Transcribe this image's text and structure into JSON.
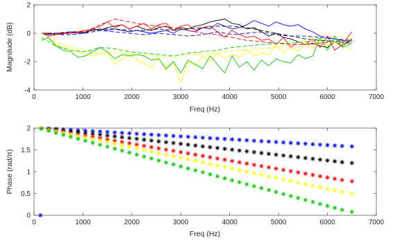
{
  "chart_data": [
    {
      "type": "line",
      "xlabel": "Freq (Hz)",
      "ylabel": "Magnitude (dB)",
      "xlim": [
        0,
        7000
      ],
      "ylim": [
        -4,
        2
      ],
      "xticks": [
        0,
        1000,
        2000,
        3000,
        4000,
        5000,
        6000,
        7000
      ],
      "xtick_labels": [
        "0",
        "1000",
        "2000",
        "3000",
        "4000",
        "5000",
        "6000",
        "7000"
      ],
      "yticks": [
        -4,
        -2,
        0,
        2
      ],
      "ytick_labels": [
        "-4",
        "-2",
        "0",
        "2"
      ],
      "grid": false,
      "series": [
        {
          "color": "#0000ff",
          "style": "solid",
          "x": [
            150,
            300,
            450,
            600,
            750,
            900,
            1050,
            1200,
            1350,
            1500,
            1650,
            1800,
            1950,
            2100,
            2250,
            2400,
            2550,
            2700,
            2850,
            3000,
            3150,
            3300,
            3450,
            3600,
            3750,
            3900,
            4050,
            4200,
            4350,
            4500,
            4650,
            4800,
            4950,
            5100,
            5250,
            5400,
            5550,
            5700,
            5850,
            6000,
            6150,
            6300,
            6500
          ],
          "y": [
            0,
            -0.1,
            0,
            0,
            0.1,
            0,
            0.1,
            0.2,
            0.3,
            0.2,
            0.3,
            0.2,
            0.1,
            0.2,
            0.1,
            0,
            0.1,
            0.2,
            0,
            0.3,
            0.2,
            0.1,
            0.4,
            0.3,
            0.7,
            0.5,
            0.3,
            0.4,
            0.6,
            0.9,
            0.7,
            0.5,
            0.8,
            0.6,
            0.5,
            0.6,
            0.3,
            0.1,
            -0.2,
            -0.3,
            -0.4,
            -0.5,
            -0.6
          ]
        },
        {
          "color": "#0000ff",
          "style": "dashed",
          "x": [
            150,
            450,
            750,
            1050,
            1350,
            1650,
            1950,
            2250,
            2550,
            2850,
            3150,
            3450,
            3750,
            4050,
            4350,
            4650,
            4950,
            5250,
            5550,
            5850,
            6150,
            6500
          ],
          "y": [
            0,
            -0.1,
            -0.1,
            0,
            0.2,
            0.1,
            0,
            -0.1,
            0,
            -0.1,
            -0.2,
            -0.1,
            0.1,
            -0.1,
            0,
            0.1,
            -0.1,
            -0.2,
            -0.2,
            -0.3,
            -0.4,
            -0.5
          ]
        },
        {
          "color": "#000000",
          "style": "solid",
          "x": [
            150,
            300,
            450,
            600,
            750,
            900,
            1050,
            1200,
            1350,
            1500,
            1650,
            1800,
            1950,
            2100,
            2250,
            2400,
            2550,
            2700,
            2850,
            3000,
            3150,
            3300,
            3450,
            3600,
            3750,
            3900,
            4050,
            4200,
            4350,
            4500,
            4650,
            4800,
            4950,
            5100,
            5250,
            5400,
            5550,
            5700,
            5850,
            6000,
            6150,
            6300,
            6500
          ],
          "y": [
            0,
            0,
            -0.1,
            0,
            0,
            0.1,
            0,
            0.3,
            0.2,
            0.4,
            0.5,
            0.6,
            0.3,
            0.5,
            0.3,
            0.2,
            0.4,
            0.5,
            0.2,
            0.4,
            0.3,
            0.5,
            0.6,
            0.8,
            0.9,
            1.0,
            0.7,
            0.6,
            0.3,
            0.4,
            0.1,
            -0.2,
            0,
            -0.3,
            -0.4,
            -0.6,
            -0.8,
            -0.7,
            -0.9,
            -1.0,
            -0.6,
            -0.9,
            -0.4
          ]
        },
        {
          "color": "#000000",
          "style": "dashed",
          "x": [
            150,
            450,
            750,
            1050,
            1350,
            1650,
            1950,
            2250,
            2550,
            2850,
            3150,
            3450,
            3750,
            4050,
            4350,
            4650,
            4950,
            5250,
            5550,
            5850,
            6150,
            6500
          ],
          "y": [
            0,
            0,
            0.1,
            0.1,
            0.3,
            0.3,
            0.2,
            0.2,
            0.3,
            0.2,
            0.3,
            0.4,
            0.5,
            0.5,
            0.4,
            0.2,
            0,
            -0.2,
            -0.4,
            -0.5,
            -0.6,
            -0.7
          ]
        },
        {
          "color": "#ff0000",
          "style": "solid",
          "x": [
            150,
            300,
            450,
            600,
            750,
            900,
            1050,
            1200,
            1350,
            1500,
            1650,
            1800,
            1950,
            2100,
            2250,
            2400,
            2550,
            2700,
            2850,
            3000,
            3150,
            3300,
            3450,
            3600,
            3750,
            3900,
            4050,
            4200,
            4350,
            4500,
            4650,
            4800,
            4950,
            5100,
            5250,
            5400,
            5550,
            5700,
            5850,
            6000,
            6150,
            6300,
            6500
          ],
          "y": [
            0,
            -0.2,
            -0.1,
            0,
            0,
            0.1,
            0.2,
            0.3,
            0.5,
            0.8,
            0.4,
            0.6,
            0.3,
            0.5,
            0.7,
            0.3,
            0.6,
            0.7,
            0.2,
            0.5,
            0.6,
            0.2,
            0.4,
            0.5,
            0.1,
            -0.3,
            0.2,
            -0.1,
            -0.3,
            -0.2,
            -0.5,
            -0.4,
            -0.8,
            -0.3,
            -1.0,
            -0.6,
            -0.8,
            -0.4,
            -1.0,
            -0.2,
            -1.2,
            -0.8,
            0.1
          ]
        },
        {
          "color": "#ff0000",
          "style": "dashed",
          "x": [
            150,
            450,
            750,
            1050,
            1350,
            1650,
            1950,
            2250,
            2550,
            2850,
            3150,
            3450,
            3750,
            4050,
            4350,
            4650,
            4950,
            5250,
            5550,
            5850,
            6150,
            6500
          ],
          "y": [
            0,
            -0.1,
            0,
            0.1,
            0.6,
            1.0,
            0.8,
            0.6,
            0.5,
            0.4,
            0.2,
            0,
            -0.1,
            -0.3,
            -0.5,
            -0.6,
            -0.7,
            -0.8,
            -0.8,
            -0.7,
            -0.6,
            -0.5
          ]
        },
        {
          "color": "#ffff00",
          "style": "solid",
          "x": [
            150,
            300,
            450,
            600,
            750,
            900,
            1050,
            1200,
            1350,
            1500,
            1650,
            1800,
            1950,
            2100,
            2250,
            2400,
            2550,
            2700,
            2850,
            3000,
            3150,
            3300,
            3450,
            3600,
            3750,
            3900,
            4050,
            4200,
            4350,
            4500,
            4650,
            4800,
            4950,
            5100,
            5250,
            5400,
            5550,
            5700,
            5850,
            6000,
            6150,
            6300,
            6500
          ],
          "y": [
            0,
            -0.3,
            -0.8,
            -1.0,
            -1.2,
            -1.3,
            -1.5,
            -1.6,
            -1.4,
            -1.3,
            -2.2,
            -1.8,
            -1.5,
            -1.9,
            -2.1,
            -2.4,
            -1.7,
            -2.6,
            -2.0,
            -3.5,
            -2.0,
            -2.3,
            -1.6,
            -2.0,
            -1.4,
            -1.8,
            -1.5,
            -1.7,
            -1.2,
            -1.6,
            -1.4,
            -1.5,
            -0.8,
            -1.4,
            -1.0,
            -1.3,
            -0.7,
            -1.1,
            -0.5,
            -0.9,
            -0.6,
            -0.8,
            -1.2
          ]
        },
        {
          "color": "#ffff00",
          "style": "dashed",
          "x": [
            150,
            450,
            750,
            1050,
            1350,
            1650,
            1950,
            2250,
            2550,
            2850,
            3150,
            3450,
            3750,
            4050,
            4350,
            4650,
            4950,
            5250,
            5550,
            5850,
            6150,
            6500
          ],
          "y": [
            0,
            -0.6,
            -1.0,
            -1.2,
            -1.5,
            -1.3,
            -1.5,
            -1.5,
            -1.6,
            -1.7,
            -1.5,
            -1.5,
            -1.4,
            -1.2,
            -1.2,
            -1.1,
            -1.0,
            -0.8,
            -0.6,
            -0.3,
            -0.2,
            -0.5
          ]
        },
        {
          "color": "#00cc00",
          "style": "solid",
          "x": [
            150,
            300,
            450,
            600,
            750,
            900,
            1050,
            1200,
            1350,
            1500,
            1650,
            1800,
            1950,
            2100,
            2250,
            2400,
            2550,
            2700,
            2850,
            3000,
            3150,
            3300,
            3450,
            3600,
            3750,
            3900,
            4050,
            4200,
            4350,
            4500,
            4650,
            4800,
            4950,
            5100,
            5250,
            5400,
            5550,
            5700,
            5850,
            6000,
            6150,
            6300,
            6500
          ],
          "y": [
            -0.5,
            -0.3,
            -0.9,
            -1.2,
            -1.3,
            -1.7,
            -1.6,
            -1.3,
            -1.0,
            -1.3,
            -1.8,
            -1.5,
            -1.6,
            -1.5,
            -1.6,
            -1.9,
            -1.8,
            -2.5,
            -2.0,
            -2.8,
            -1.9,
            -2.2,
            -2.5,
            -1.6,
            -2.2,
            -2.8,
            -1.6,
            -2.4,
            -2.0,
            -2.6,
            -1.9,
            -2.3,
            -1.8,
            -2.0,
            -2.1,
            -1.5,
            -1.8,
            -1.6,
            -0.3,
            -1.2,
            -0.2,
            -1.0,
            -0.7
          ]
        },
        {
          "color": "#00cc00",
          "style": "dashed",
          "x": [
            150,
            450,
            750,
            1050,
            1350,
            1650,
            1950,
            2250,
            2550,
            2850,
            3150,
            3450,
            3750,
            4050,
            4350,
            4650,
            4950,
            5250,
            5550,
            5850,
            6150,
            6500
          ],
          "y": [
            -0.3,
            -0.9,
            -1.2,
            -1.3,
            -1.0,
            -1.1,
            -1.3,
            -1.4,
            -1.5,
            -1.6,
            -1.4,
            -1.3,
            -1.2,
            -1.0,
            -0.9,
            -0.8,
            -0.7,
            -0.7,
            -0.6,
            -0.5,
            -0.5,
            -0.6
          ]
        }
      ]
    },
    {
      "type": "scatter",
      "marker": "*",
      "xlabel": "Freq (Hz)",
      "ylabel": "Phase (rad/π)",
      "xlim": [
        0,
        7000
      ],
      "ylim": [
        0,
        2
      ],
      "xticks": [
        0,
        1000,
        2000,
        3000,
        4000,
        5000,
        6000,
        7000
      ],
      "xtick_labels": [
        "0",
        "1000",
        "2000",
        "3000",
        "4000",
        "5000",
        "6000",
        "7000"
      ],
      "yticks": [
        0,
        0.5,
        1,
        1.5,
        2
      ],
      "ytick_labels": [
        "0",
        "0.5",
        "1",
        "1.5",
        "2"
      ],
      "grid": false,
      "x": [
        150,
        300,
        450,
        600,
        750,
        900,
        1050,
        1200,
        1350,
        1500,
        1650,
        1800,
        1950,
        2100,
        2250,
        2400,
        2550,
        2700,
        2850,
        3000,
        3150,
        3300,
        3450,
        3600,
        3750,
        3900,
        4050,
        4200,
        4350,
        4500,
        4650,
        4800,
        4950,
        5100,
        5250,
        5400,
        5550,
        5700,
        5850,
        6000,
        6150,
        6300,
        6500
      ],
      "series": [
        {
          "color": "#0000ff",
          "params": {
            "start": 2.0,
            "end": 1.58
          },
          "extra_points": [
            [
              130,
              0.0
            ]
          ]
        },
        {
          "color": "#000000",
          "params": {
            "start": 2.0,
            "end": 1.2
          }
        },
        {
          "color": "#ff0000",
          "params": {
            "start": 2.0,
            "end": 0.78
          }
        },
        {
          "color": "#ffff00",
          "params": {
            "start": 2.0,
            "end": 0.5
          }
        },
        {
          "color": "#00cc00",
          "params": {
            "start": 1.98,
            "end": 0.08
          }
        }
      ]
    }
  ]
}
